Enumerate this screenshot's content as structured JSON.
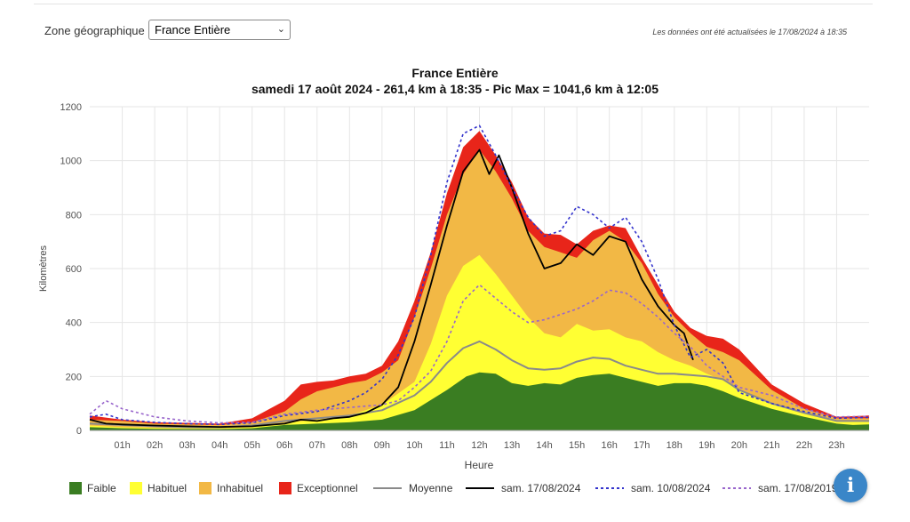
{
  "filter": {
    "label": "Zone géographique :",
    "selected": "France Entière",
    "chevron_icon": "chevron-down-icon"
  },
  "update_note": "Les données ont été actualisées le 17/08/2024 à 18:35",
  "info_button": {
    "icon": "info-icon",
    "glyph": "i"
  },
  "chart_data": {
    "type": "area",
    "title": "France Entière",
    "subtitle": "samedi 17 août 2024 - 261,4 km à 18:35 - Pic Max = 1041,6 km à 12:05",
    "xlabel": "Heure",
    "ylabel": "Kilomètres",
    "ylim": [
      0,
      1200
    ],
    "xlim": [
      0,
      24
    ],
    "y_ticks": [
      0,
      200,
      400,
      600,
      800,
      1000,
      1200
    ],
    "x_ticks": [
      "01h",
      "02h",
      "03h",
      "04h",
      "05h",
      "06h",
      "07h",
      "08h",
      "09h",
      "10h",
      "11h",
      "12h",
      "13h",
      "14h",
      "15h",
      "16h",
      "17h",
      "18h",
      "19h",
      "20h",
      "21h",
      "22h",
      "23h"
    ],
    "grid": true,
    "legend_position": "bottom",
    "stacked_bands": [
      {
        "name": "Faible",
        "color": "#3a7d22",
        "points": [
          [
            0,
            12
          ],
          [
            1,
            8
          ],
          [
            2,
            6
          ],
          [
            3,
            5
          ],
          [
            4,
            5
          ],
          [
            5,
            8
          ],
          [
            6,
            20
          ],
          [
            7,
            25
          ],
          [
            8,
            30
          ],
          [
            9,
            40
          ],
          [
            10,
            75
          ],
          [
            11,
            150
          ],
          [
            11.6,
            200
          ],
          [
            12,
            215
          ],
          [
            12.5,
            210
          ],
          [
            13,
            175
          ],
          [
            13.5,
            165
          ],
          [
            14,
            175
          ],
          [
            14.5,
            170
          ],
          [
            15,
            195
          ],
          [
            15.5,
            205
          ],
          [
            16,
            210
          ],
          [
            16.5,
            195
          ],
          [
            17,
            180
          ],
          [
            17.5,
            165
          ],
          [
            18,
            175
          ],
          [
            18.5,
            175
          ],
          [
            19,
            165
          ],
          [
            19.5,
            145
          ],
          [
            20,
            120
          ],
          [
            21,
            80
          ],
          [
            22,
            50
          ],
          [
            23,
            25
          ],
          [
            23.5,
            20
          ],
          [
            24,
            22
          ]
        ]
      },
      {
        "name": "Habituel",
        "color": "#ffff33",
        "points": [
          [
            0,
            18
          ],
          [
            1,
            12
          ],
          [
            2,
            10
          ],
          [
            3,
            8
          ],
          [
            4,
            8
          ],
          [
            5,
            12
          ],
          [
            6,
            28
          ],
          [
            7,
            40
          ],
          [
            8,
            55
          ],
          [
            9,
            95
          ],
          [
            10,
            180
          ],
          [
            10.5,
            320
          ],
          [
            11,
            500
          ],
          [
            11.5,
            610
          ],
          [
            12,
            650
          ],
          [
            12.5,
            580
          ],
          [
            13,
            500
          ],
          [
            13.5,
            420
          ],
          [
            14,
            360
          ],
          [
            14.5,
            345
          ],
          [
            15,
            395
          ],
          [
            15.5,
            370
          ],
          [
            16,
            375
          ],
          [
            16.5,
            345
          ],
          [
            17,
            330
          ],
          [
            17.5,
            290
          ],
          [
            18,
            260
          ],
          [
            18.5,
            240
          ],
          [
            19,
            210
          ],
          [
            19.5,
            185
          ],
          [
            20,
            150
          ],
          [
            21,
            100
          ],
          [
            22,
            65
          ],
          [
            23,
            35
          ],
          [
            24,
            35
          ]
        ]
      },
      {
        "name": "Inhabituel",
        "color": "#f2b845",
        "points": [
          [
            0,
            40
          ],
          [
            1,
            35
          ],
          [
            2,
            25
          ],
          [
            3,
            22
          ],
          [
            4,
            20
          ],
          [
            5,
            30
          ],
          [
            6,
            70
          ],
          [
            6.5,
            115
          ],
          [
            7,
            145
          ],
          [
            7.5,
            160
          ],
          [
            8,
            175
          ],
          [
            8.5,
            185
          ],
          [
            9,
            215
          ],
          [
            9.5,
            260
          ],
          [
            10,
            420
          ],
          [
            10.5,
            600
          ],
          [
            11,
            800
          ],
          [
            11.5,
            950
          ],
          [
            12,
            1040
          ],
          [
            12.5,
            960
          ],
          [
            13,
            860
          ],
          [
            13.5,
            740
          ],
          [
            14,
            680
          ],
          [
            14.5,
            660
          ],
          [
            15,
            640
          ],
          [
            15.5,
            705
          ],
          [
            16,
            740
          ],
          [
            16.5,
            700
          ],
          [
            17,
            620
          ],
          [
            17.5,
            505
          ],
          [
            18,
            420
          ],
          [
            18.5,
            360
          ],
          [
            19,
            310
          ],
          [
            19.5,
            290
          ],
          [
            20,
            260
          ],
          [
            21,
            150
          ],
          [
            22,
            80
          ],
          [
            23,
            45
          ],
          [
            24,
            45
          ]
        ]
      },
      {
        "name": "Exceptionnel",
        "color": "#e8251a",
        "points": [
          [
            0,
            55
          ],
          [
            1,
            40
          ],
          [
            2,
            30
          ],
          [
            3,
            28
          ],
          [
            4,
            25
          ],
          [
            5,
            45
          ],
          [
            6,
            110
          ],
          [
            6.5,
            170
          ],
          [
            7,
            180
          ],
          [
            7.5,
            185
          ],
          [
            8,
            200
          ],
          [
            8.5,
            210
          ],
          [
            9,
            240
          ],
          [
            9.5,
            330
          ],
          [
            10,
            480
          ],
          [
            10.5,
            660
          ],
          [
            11,
            880
          ],
          [
            11.5,
            1050
          ],
          [
            12,
            1110
          ],
          [
            12.5,
            1020
          ],
          [
            13,
            920
          ],
          [
            13.5,
            790
          ],
          [
            14,
            730
          ],
          [
            14.5,
            725
          ],
          [
            15,
            690
          ],
          [
            15.5,
            740
          ],
          [
            16,
            760
          ],
          [
            16.5,
            750
          ],
          [
            17,
            640
          ],
          [
            17.5,
            540
          ],
          [
            18,
            440
          ],
          [
            18.5,
            380
          ],
          [
            19,
            350
          ],
          [
            19.5,
            340
          ],
          [
            20,
            300
          ],
          [
            21,
            170
          ],
          [
            22,
            100
          ],
          [
            23,
            50
          ],
          [
            24,
            55
          ]
        ]
      }
    ],
    "series": [
      {
        "name": "Moyenne",
        "color": "#8a8a8a",
        "style": "solid",
        "points": [
          [
            0,
            25
          ],
          [
            1,
            20
          ],
          [
            2,
            15
          ],
          [
            3,
            12
          ],
          [
            4,
            12
          ],
          [
            5,
            18
          ],
          [
            6,
            35
          ],
          [
            7,
            45
          ],
          [
            8,
            55
          ],
          [
            9,
            75
          ],
          [
            10,
            130
          ],
          [
            10.5,
            180
          ],
          [
            11,
            250
          ],
          [
            11.5,
            305
          ],
          [
            12,
            330
          ],
          [
            12.5,
            300
          ],
          [
            13,
            260
          ],
          [
            13.5,
            230
          ],
          [
            14,
            225
          ],
          [
            14.5,
            230
          ],
          [
            15,
            255
          ],
          [
            15.5,
            270
          ],
          [
            16,
            265
          ],
          [
            16.5,
            240
          ],
          [
            17,
            225
          ],
          [
            17.5,
            210
          ],
          [
            18,
            210
          ],
          [
            18.5,
            205
          ],
          [
            19,
            200
          ],
          [
            19.5,
            190
          ],
          [
            20,
            150
          ],
          [
            21,
            100
          ],
          [
            22,
            65
          ],
          [
            23,
            35
          ],
          [
            24,
            35
          ]
        ]
      },
      {
        "name": "sam. 17/08/2024",
        "color": "#000000",
        "style": "solid",
        "points": [
          [
            0,
            40
          ],
          [
            0.5,
            25
          ],
          [
            1,
            22
          ],
          [
            2,
            18
          ],
          [
            3,
            15
          ],
          [
            4,
            13
          ],
          [
            5,
            15
          ],
          [
            5.5,
            20
          ],
          [
            6,
            25
          ],
          [
            6.5,
            40
          ],
          [
            7,
            35
          ],
          [
            7.5,
            45
          ],
          [
            8,
            50
          ],
          [
            8.5,
            65
          ],
          [
            9,
            95
          ],
          [
            9.5,
            160
          ],
          [
            10,
            330
          ],
          [
            10.5,
            540
          ],
          [
            11,
            760
          ],
          [
            11.5,
            960
          ],
          [
            12,
            1040
          ],
          [
            12.3,
            950
          ],
          [
            12.6,
            1020
          ],
          [
            13,
            900
          ],
          [
            13.5,
            730
          ],
          [
            14,
            600
          ],
          [
            14.5,
            620
          ],
          [
            15,
            690
          ],
          [
            15.5,
            650
          ],
          [
            16,
            720
          ],
          [
            16.5,
            700
          ],
          [
            17,
            560
          ],
          [
            17.5,
            460
          ],
          [
            18,
            390
          ],
          [
            18.3,
            360
          ],
          [
            18.58,
            261
          ]
        ]
      },
      {
        "name": "sam. 10/08/2024",
        "color": "#3333cc",
        "style": "dotted",
        "points": [
          [
            0,
            50
          ],
          [
            0.5,
            60
          ],
          [
            1,
            40
          ],
          [
            2,
            30
          ],
          [
            3,
            25
          ],
          [
            4,
            22
          ],
          [
            5,
            28
          ],
          [
            6,
            55
          ],
          [
            7,
            70
          ],
          [
            7.5,
            90
          ],
          [
            8,
            110
          ],
          [
            8.5,
            140
          ],
          [
            9,
            190
          ],
          [
            9.5,
            280
          ],
          [
            10,
            420
          ],
          [
            10.5,
            650
          ],
          [
            11,
            920
          ],
          [
            11.5,
            1100
          ],
          [
            12,
            1130
          ],
          [
            12.5,
            1020
          ],
          [
            13,
            900
          ],
          [
            13.5,
            790
          ],
          [
            14,
            720
          ],
          [
            14.5,
            740
          ],
          [
            15,
            830
          ],
          [
            15.5,
            800
          ],
          [
            16,
            750
          ],
          [
            16.5,
            790
          ],
          [
            17,
            700
          ],
          [
            17.5,
            560
          ],
          [
            18,
            390
          ],
          [
            18.5,
            270
          ],
          [
            19,
            300
          ],
          [
            19.5,
            250
          ],
          [
            20,
            140
          ],
          [
            21,
            100
          ],
          [
            22,
            70
          ],
          [
            23,
            45
          ],
          [
            24,
            48
          ]
        ]
      },
      {
        "name": "sam. 17/08/2019",
        "color": "#9966cc",
        "style": "dotted",
        "points": [
          [
            0,
            60
          ],
          [
            0.5,
            110
          ],
          [
            1,
            80
          ],
          [
            2,
            50
          ],
          [
            3,
            35
          ],
          [
            4,
            28
          ],
          [
            5,
            30
          ],
          [
            6,
            60
          ],
          [
            7,
            75
          ],
          [
            8,
            85
          ],
          [
            9,
            95
          ],
          [
            9.5,
            110
          ],
          [
            10,
            160
          ],
          [
            10.5,
            220
          ],
          [
            11,
            330
          ],
          [
            11.5,
            480
          ],
          [
            12,
            540
          ],
          [
            12.5,
            490
          ],
          [
            13,
            440
          ],
          [
            13.5,
            400
          ],
          [
            14,
            410
          ],
          [
            14.5,
            430
          ],
          [
            15,
            450
          ],
          [
            15.5,
            480
          ],
          [
            16,
            520
          ],
          [
            16.5,
            510
          ],
          [
            17,
            470
          ],
          [
            17.5,
            420
          ],
          [
            18,
            360
          ],
          [
            18.5,
            310
          ],
          [
            19,
            240
          ],
          [
            19.5,
            200
          ],
          [
            20,
            160
          ],
          [
            21,
            130
          ],
          [
            22,
            80
          ],
          [
            23,
            50
          ],
          [
            24,
            52
          ]
        ]
      }
    ]
  }
}
